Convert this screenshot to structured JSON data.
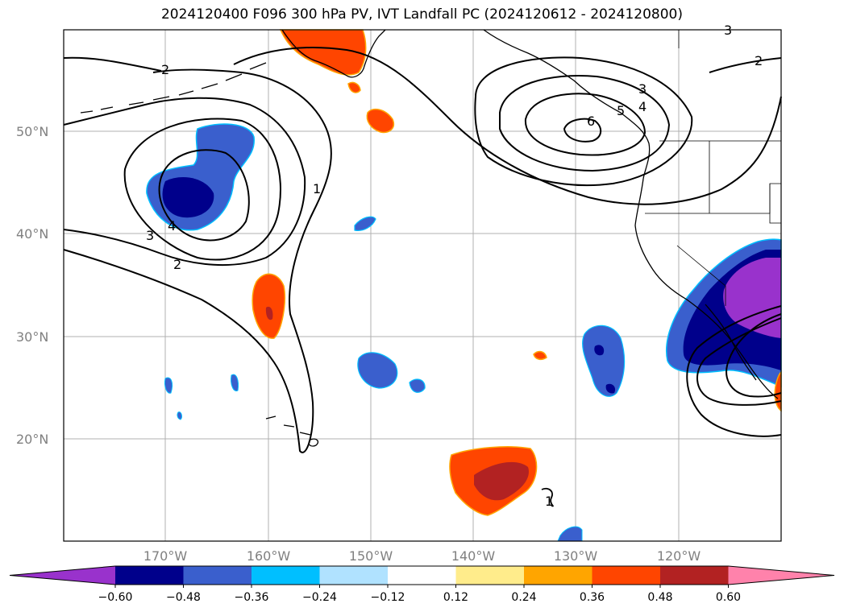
{
  "title": "2024120400 F096 300 hPa PV, IVT Landfall PC (2024120612 - 2024120800)",
  "lat_labels": [
    "50°N",
    "40°N",
    "30°N",
    "20°N"
  ],
  "lon_labels": [
    "170°W",
    "160°W",
    "150°W",
    "140°W",
    "130°W",
    "120°W"
  ],
  "contour_labels": [
    "2",
    "2",
    "3",
    "4",
    "1",
    "3",
    "4",
    "5",
    "6",
    "2",
    "3",
    "1"
  ],
  "colorbar": {
    "ticks": [
      "−0.60",
      "−0.48",
      "−0.36",
      "−0.24",
      "−0.12",
      "0.12",
      "0.24",
      "0.36",
      "0.48",
      "0.60"
    ],
    "colors": [
      "#9932cc",
      "#00008b",
      "#3a5fcd",
      "#00bfff",
      "#b0e2ff",
      "#ffffff",
      "#ffec8b",
      "#ffa500",
      "#ff4500",
      "#b22222",
      "#ff82ab"
    ]
  },
  "map": {
    "extent_lon": [
      -180,
      -110
    ],
    "extent_lat": [
      10,
      60
    ],
    "neg_anomaly_colors": {
      "weak": "#3a5fcd",
      "strong": "#00008b",
      "extreme": "#9932cc",
      "edge": "#00bfff"
    },
    "pos_anomaly_colors": {
      "weak": "#ff4500",
      "strong": "#b22222",
      "edge": "#ffa500"
    }
  }
}
